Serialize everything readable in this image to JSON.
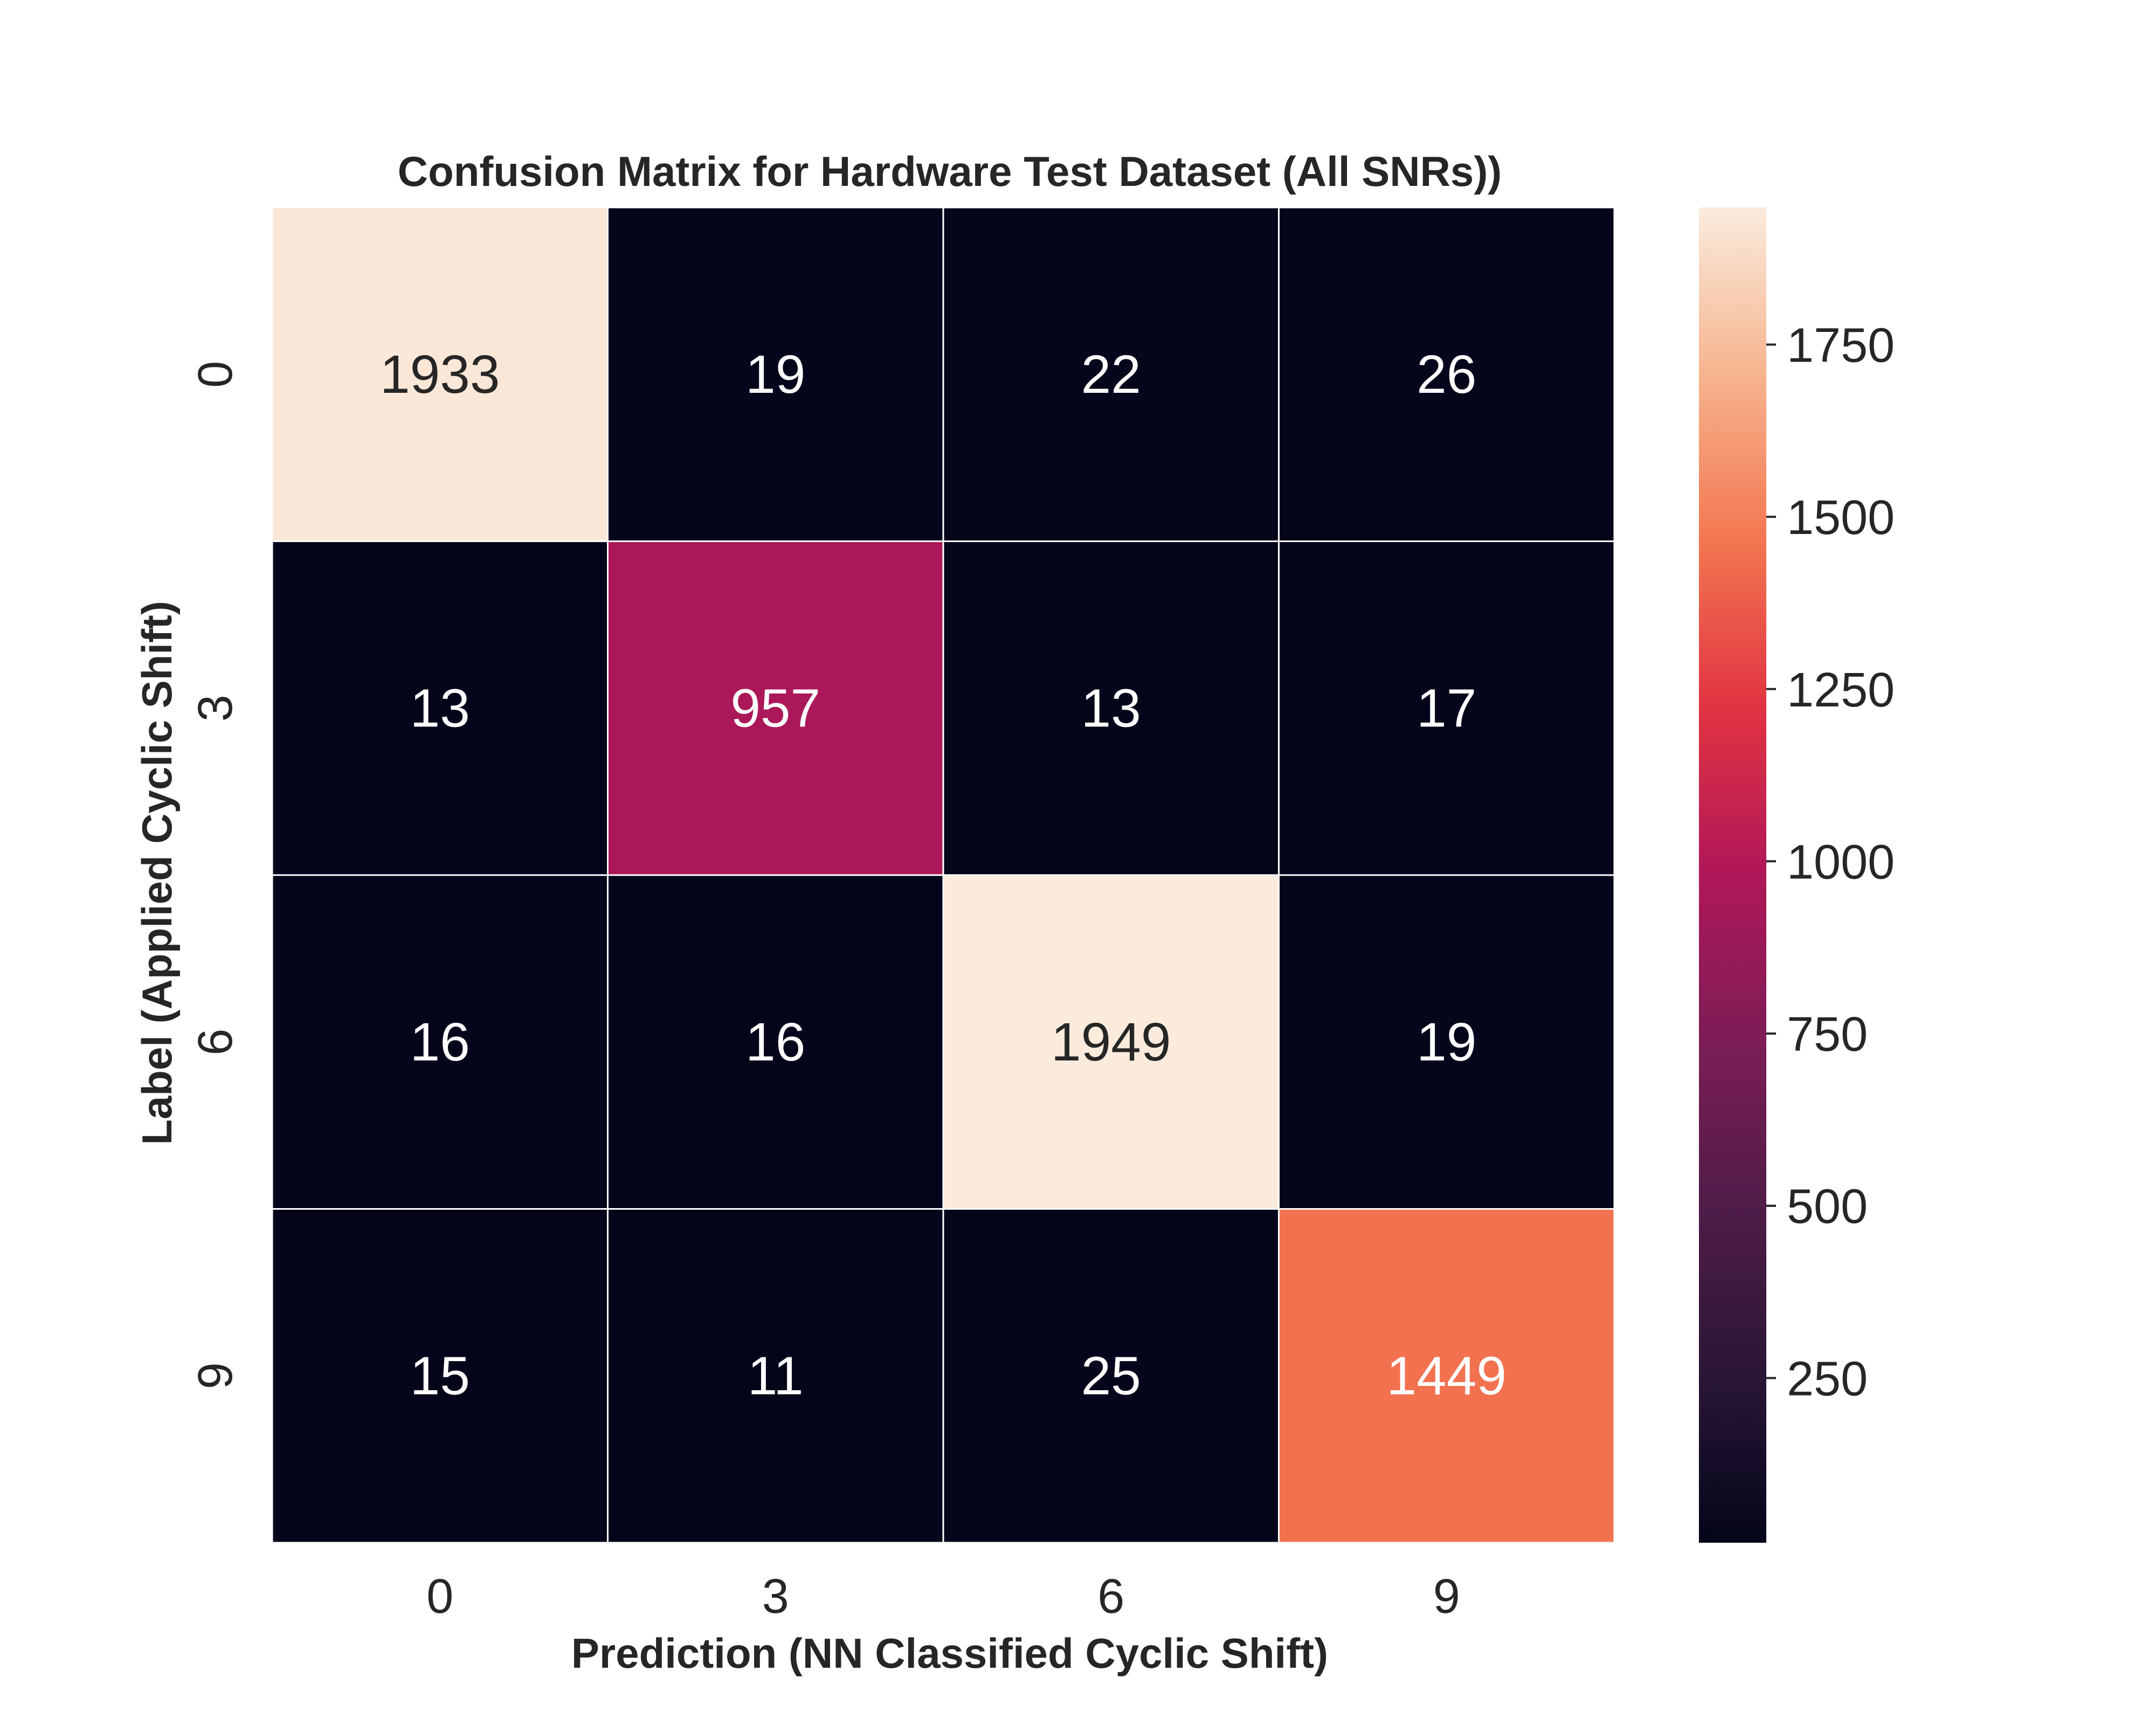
{
  "chart_data": {
    "type": "heatmap",
    "title": "Confusion Matrix for Hardware Test Dataset (All SNRs))",
    "xlabel": "Prediction (NN Classified Cyclic Shift)",
    "ylabel": "Label (Applied Cyclic Shift)",
    "x_categories": [
      "0",
      "3",
      "6",
      "9"
    ],
    "y_categories": [
      "0",
      "3",
      "6",
      "9"
    ],
    "values": [
      [
        1933,
        19,
        22,
        26
      ],
      [
        13,
        957,
        13,
        17
      ],
      [
        16,
        16,
        1949,
        19
      ],
      [
        15,
        11,
        25,
        1449
      ]
    ],
    "colorbar": {
      "min": 11,
      "max": 1949,
      "ticks": [
        250,
        500,
        750,
        1000,
        1250,
        1500,
        1750
      ],
      "colormap": "rocket"
    },
    "colors": {
      "cell_border": "#ffffff",
      "dark_text": "#262626",
      "light_text": "#ffffff"
    }
  }
}
